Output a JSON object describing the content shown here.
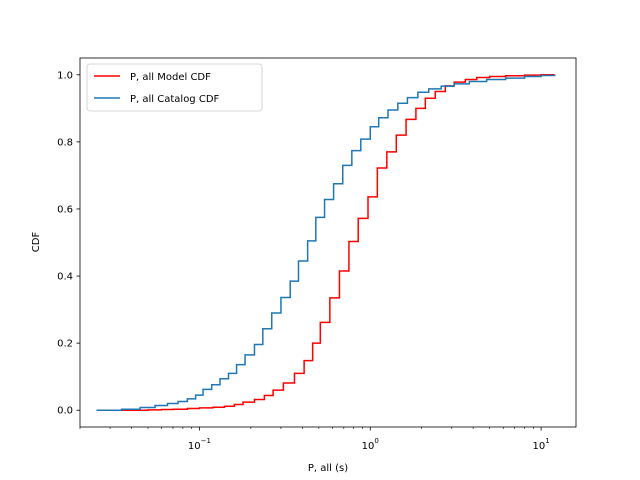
{
  "chart_data": {
    "type": "line",
    "step": true,
    "xscale": "log",
    "xlim": [
      0.02,
      16
    ],
    "ylim": [
      -0.05,
      1.05
    ],
    "xlabel": "P, all (s)",
    "ylabel": "CDF",
    "x_ticks": [
      {
        "value": 0.1,
        "base": "10",
        "exp": "−1"
      },
      {
        "value": 1,
        "base": "10",
        "exp": "0"
      },
      {
        "value": 10,
        "base": "10",
        "exp": "1"
      }
    ],
    "y_ticks": [
      {
        "value": 0.0,
        "label": "0.0"
      },
      {
        "value": 0.2,
        "label": "0.2"
      },
      {
        "value": 0.4,
        "label": "0.4"
      },
      {
        "value": 0.6,
        "label": "0.6"
      },
      {
        "value": 0.8,
        "label": "0.8"
      },
      {
        "value": 1.0,
        "label": "1.0"
      }
    ],
    "grid": false,
    "legend_position": "top-left",
    "series": [
      {
        "name": "P, all Model CDF",
        "color": "#ff0000",
        "points": [
          [
            0.025,
            0.0
          ],
          [
            0.04,
            0.0
          ],
          [
            0.05,
            0.001
          ],
          [
            0.06,
            0.002
          ],
          [
            0.07,
            0.003
          ],
          [
            0.085,
            0.005
          ],
          [
            0.1,
            0.007
          ],
          [
            0.12,
            0.009
          ],
          [
            0.14,
            0.012
          ],
          [
            0.16,
            0.017
          ],
          [
            0.18,
            0.024
          ],
          [
            0.21,
            0.032
          ],
          [
            0.24,
            0.044
          ],
          [
            0.27,
            0.06
          ],
          [
            0.31,
            0.081
          ],
          [
            0.36,
            0.11
          ],
          [
            0.41,
            0.148
          ],
          [
            0.46,
            0.2
          ],
          [
            0.51,
            0.262
          ],
          [
            0.58,
            0.335
          ],
          [
            0.66,
            0.415
          ],
          [
            0.75,
            0.503
          ],
          [
            0.85,
            0.572
          ],
          [
            0.97,
            0.636
          ],
          [
            1.1,
            0.722
          ],
          [
            1.25,
            0.77
          ],
          [
            1.42,
            0.82
          ],
          [
            1.62,
            0.867
          ],
          [
            1.85,
            0.9
          ],
          [
            2.1,
            0.93
          ],
          [
            2.4,
            0.95
          ],
          [
            2.75,
            0.967
          ],
          [
            3.1,
            0.978
          ],
          [
            3.6,
            0.986
          ],
          [
            4.2,
            0.992
          ],
          [
            5.0,
            0.995
          ],
          [
            6.2,
            0.997
          ],
          [
            8.0,
            0.999
          ],
          [
            10.0,
            1.0
          ],
          [
            12.0,
            1.0
          ]
        ]
      },
      {
        "name": "P, all Catalog CDF",
        "color": "#1f77b4",
        "points": [
          [
            0.025,
            0.0
          ],
          [
            0.035,
            0.003
          ],
          [
            0.045,
            0.008
          ],
          [
            0.055,
            0.014
          ],
          [
            0.065,
            0.02
          ],
          [
            0.075,
            0.026
          ],
          [
            0.085,
            0.034
          ],
          [
            0.095,
            0.045
          ],
          [
            0.105,
            0.062
          ],
          [
            0.118,
            0.076
          ],
          [
            0.132,
            0.094
          ],
          [
            0.148,
            0.11
          ],
          [
            0.165,
            0.136
          ],
          [
            0.185,
            0.165
          ],
          [
            0.21,
            0.196
          ],
          [
            0.235,
            0.243
          ],
          [
            0.265,
            0.29
          ],
          [
            0.3,
            0.336
          ],
          [
            0.34,
            0.385
          ],
          [
            0.38,
            0.445
          ],
          [
            0.43,
            0.505
          ],
          [
            0.48,
            0.575
          ],
          [
            0.54,
            0.628
          ],
          [
            0.61,
            0.675
          ],
          [
            0.69,
            0.73
          ],
          [
            0.78,
            0.774
          ],
          [
            0.88,
            0.808
          ],
          [
            1.0,
            0.845
          ],
          [
            1.12,
            0.872
          ],
          [
            1.27,
            0.895
          ],
          [
            1.45,
            0.915
          ],
          [
            1.65,
            0.932
          ],
          [
            1.9,
            0.948
          ],
          [
            2.2,
            0.958
          ],
          [
            2.6,
            0.966
          ],
          [
            3.1,
            0.973
          ],
          [
            3.8,
            0.98
          ],
          [
            4.8,
            0.986
          ],
          [
            6.2,
            0.99
          ],
          [
            8.0,
            0.995
          ],
          [
            10.0,
            0.998
          ],
          [
            12.0,
            1.0
          ]
        ]
      }
    ]
  }
}
